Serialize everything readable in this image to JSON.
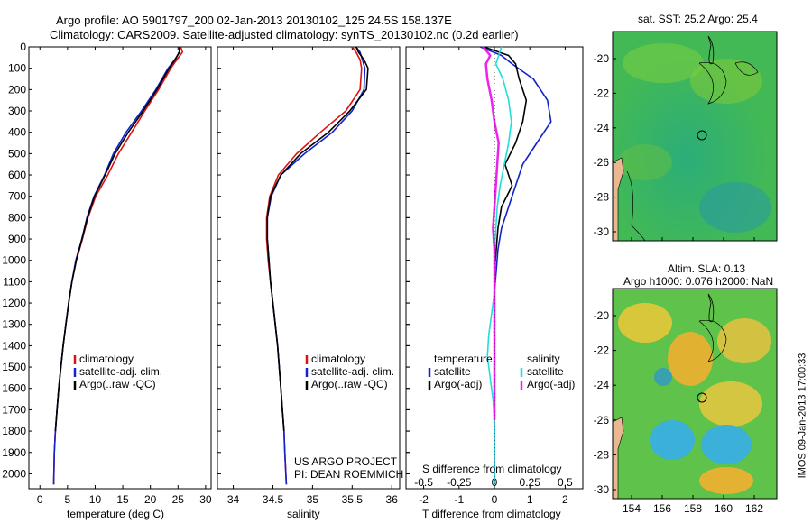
{
  "header": {
    "title_line1": "Argo profile: AO 5901797_200 02-Jan-2013 20130102_125 24.5S 158.137E",
    "title_line2": "Climatology: CARS2009. Satellite-adjusted climatology: synTS_20130102.nc (0.2d earlier)"
  },
  "depth_ticks": [
    0,
    100,
    200,
    300,
    400,
    500,
    600,
    700,
    800,
    900,
    1000,
    1100,
    1200,
    1300,
    1400,
    1500,
    1600,
    1700,
    1800,
    1900,
    2000
  ],
  "panels": {
    "temperature": {
      "xlabel": "temperature (deg C)",
      "xticks": [
        "0",
        "5",
        "10",
        "15",
        "20",
        "25",
        "30"
      ],
      "legend": [
        "climatology",
        "satellite-adj. clim.",
        "Argo(..raw -QC)"
      ]
    },
    "salinity": {
      "xlabel": "salinity",
      "xticks": [
        "34",
        "34.5",
        "35",
        "35.5",
        "36"
      ],
      "legend": [
        "climatology",
        "satellite-adj. clim.",
        "Argo(..raw -QC)"
      ],
      "project_line1": "US ARGO PROJECT",
      "project_line2": "PI: DEAN ROEMMICH"
    },
    "difference": {
      "xlabel": "T difference from climatology",
      "top_label": "S difference from climatology",
      "xticks_T": [
        "-2",
        "-1",
        "0",
        "1",
        "2"
      ],
      "xticks_S": [
        "-0.5",
        "-0.25",
        "0",
        "0.25",
        "0.5"
      ],
      "legend_temp_head": "temperature",
      "legend_sal_head": "salinity",
      "legend_temp": [
        "satellite",
        "Argo(-adj)"
      ],
      "legend_sal": [
        "satellite",
        "Argo(-adj)"
      ]
    }
  },
  "maps": {
    "sst_title": "sat. SST: 25.2  Argo: 25.4",
    "sla_title1": "Altim. SLA: 0.13",
    "sla_title2": "Argo h1000: 0.076 h2000: NaN",
    "yticks": [
      "-20",
      "-22",
      "-24",
      "-26",
      "-28",
      "-30"
    ],
    "xticks": [
      "154",
      "156",
      "158",
      "160",
      "162"
    ]
  },
  "footer_stamp": "IMOS 09-Jan-2013 17:00:33",
  "colors": {
    "climatology": "#dd1111",
    "satellite": "#1122cc",
    "argo": "#000000",
    "sat_salinity": "#22dddd",
    "argo_salinity": "#ee22ee",
    "land": "#e8b890"
  },
  "chart_data": [
    {
      "type": "line",
      "title": "",
      "xlabel": "temperature (deg C)",
      "ylabel": "",
      "xlim": [
        -2,
        31
      ],
      "ylim": [
        2070,
        0
      ],
      "series": [
        {
          "name": "climatology",
          "x": [
            25.5,
            25.8,
            24.8,
            23.7,
            21.5,
            19,
            16.6,
            14.2,
            12.3,
            10.1,
            8.7,
            7.7,
            6.6,
            5.8,
            5.2,
            4.7,
            4.2,
            3.8,
            3.4,
            3.1,
            2.8,
            2.6,
            2.5
          ],
          "y": [
            0,
            25,
            60,
            100,
            200,
            300,
            400,
            500,
            600,
            700,
            800,
            900,
            1000,
            1100,
            1200,
            1300,
            1400,
            1500,
            1600,
            1700,
            1800,
            1900,
            2050
          ]
        },
        {
          "name": "satellite-adj. clim.",
          "x": [
            25.2,
            25.3,
            24.4,
            23.2,
            21,
            18.4,
            15.6,
            13.3,
            11.7,
            9.8,
            8.5,
            7.6,
            6.5,
            5.8,
            5.2,
            4.7,
            4.2,
            3.8,
            3.4,
            3.1,
            2.8,
            2.6,
            2.5
          ],
          "y": [
            0,
            25,
            60,
            100,
            200,
            300,
            400,
            500,
            600,
            700,
            800,
            900,
            1000,
            1100,
            1200,
            1300,
            1400,
            1500,
            1600,
            1700,
            1800,
            1900,
            2050
          ]
        },
        {
          "name": "Argo(..raw -QC)",
          "x": [
            25.4,
            25.2,
            24.5,
            23.4,
            21.2,
            18.7,
            16,
            13.6,
            11.8,
            9.9,
            8.6,
            7.6,
            6.6,
            5.8,
            5.2,
            4.7,
            4.2,
            3.8,
            3.4,
            3.1,
            2.8
          ],
          "y": [
            0,
            25,
            60,
            100,
            200,
            300,
            400,
            500,
            600,
            700,
            800,
            900,
            1000,
            1100,
            1200,
            1300,
            1400,
            1500,
            1600,
            1700,
            1800
          ]
        }
      ]
    },
    {
      "type": "line",
      "title": "",
      "xlabel": "salinity",
      "ylabel": "",
      "xlim": [
        33.8,
        36.1
      ],
      "ylim": [
        2070,
        0
      ],
      "series": [
        {
          "name": "climatology",
          "x": [
            35.5,
            35.55,
            35.6,
            35.62,
            35.6,
            35.42,
            35.1,
            34.8,
            34.57,
            34.46,
            34.42,
            34.42,
            34.44,
            34.47,
            34.5,
            34.53,
            34.56,
            34.58,
            34.6,
            34.62,
            34.64,
            34.65,
            34.67
          ],
          "y": [
            0,
            25,
            60,
            100,
            200,
            300,
            400,
            500,
            600,
            700,
            800,
            900,
            1000,
            1100,
            1200,
            1300,
            1400,
            1500,
            1600,
            1700,
            1800,
            1900,
            2050
          ]
        },
        {
          "name": "satellite-adj. clim.",
          "x": [
            35.55,
            35.6,
            35.63,
            35.66,
            35.65,
            35.5,
            35.25,
            34.9,
            34.6,
            34.48,
            34.43,
            34.43,
            34.45,
            34.47,
            34.5,
            34.53,
            34.56,
            34.58,
            34.6,
            34.62,
            34.64,
            34.65,
            34.67
          ],
          "y": [
            0,
            25,
            60,
            100,
            200,
            300,
            400,
            500,
            600,
            700,
            800,
            900,
            1000,
            1100,
            1200,
            1300,
            1400,
            1500,
            1600,
            1700,
            1800,
            1900,
            2050
          ]
        },
        {
          "name": "Argo(..raw -QC)",
          "x": [
            35.55,
            35.58,
            35.65,
            35.7,
            35.68,
            35.47,
            35.2,
            34.85,
            34.6,
            34.47,
            34.43,
            34.43,
            34.45,
            34.47,
            34.5,
            34.53,
            34.56,
            34.58,
            34.6,
            34.62,
            34.64
          ],
          "y": [
            0,
            25,
            60,
            100,
            200,
            300,
            400,
            500,
            600,
            700,
            800,
            900,
            1000,
            1100,
            1200,
            1300,
            1400,
            1500,
            1600,
            1700,
            1800
          ]
        }
      ]
    },
    {
      "type": "line",
      "title": "",
      "xlabel": "T difference from climatology",
      "ylabel": "",
      "xlim": [
        -2.5,
        2.5
      ],
      "ylim": [
        2070,
        0
      ],
      "series": [
        {
          "name": "satellite",
          "x": [
            -0.4,
            0.2,
            0.5,
            1.1,
            1.5,
            1.6,
            1.2,
            0.8,
            0.6,
            0.4,
            0.2,
            0.1,
            0.05,
            0,
            0,
            0,
            0,
            0,
            0,
            0,
            0,
            0
          ],
          "y": [
            0,
            40,
            80,
            150,
            250,
            350,
            450,
            550,
            650,
            750,
            850,
            950,
            1050,
            1150,
            1250,
            1350,
            1450,
            1550,
            1650,
            1750,
            1850,
            2050
          ]
        },
        {
          "name": "Argo(-adj)",
          "x": [
            -0.3,
            0.4,
            0.6,
            0.7,
            0.9,
            0.8,
            0.6,
            0.3,
            0.5,
            0.2,
            0.1,
            0.05,
            0,
            0,
            0,
            0,
            0,
            0,
            0,
            0
          ],
          "y": [
            0,
            40,
            80,
            150,
            250,
            350,
            450,
            550,
            650,
            750,
            850,
            950,
            1050,
            1150,
            1250,
            1350,
            1450,
            1550,
            1650,
            1750
          ]
        }
      ]
    },
    {
      "type": "line",
      "title": "",
      "xlabel": "S difference from climatology",
      "ylabel": "",
      "xlim": [
        -0.625,
        0.625
      ],
      "ylim": [
        2070,
        0
      ],
      "series": [
        {
          "name": "satellite",
          "x": [
            0.05,
            0.03,
            0.01,
            0.06,
            0.1,
            0.12,
            0.1,
            0.07,
            0.04,
            0.02,
            0.01,
            0,
            0,
            0,
            -0.02,
            -0.04,
            -0.05,
            -0.03,
            -0.01,
            0,
            0
          ],
          "y": [
            0,
            40,
            80,
            150,
            250,
            350,
            450,
            550,
            650,
            750,
            850,
            950,
            1050,
            1150,
            1250,
            1350,
            1450,
            1550,
            1650,
            1750,
            2050
          ]
        },
        {
          "name": "Argo(-adj)",
          "x": [
            -0.08,
            -0.03,
            -0.06,
            -0.05,
            -0.02,
            0,
            0.03,
            0.02,
            0.01,
            0,
            -0.01,
            0,
            0,
            0,
            0,
            0,
            0,
            0,
            0,
            0
          ],
          "y": [
            0,
            40,
            80,
            150,
            250,
            350,
            450,
            550,
            650,
            750,
            850,
            950,
            1050,
            1150,
            1250,
            1350,
            1450,
            1550,
            1650,
            1750
          ]
        }
      ]
    }
  ]
}
